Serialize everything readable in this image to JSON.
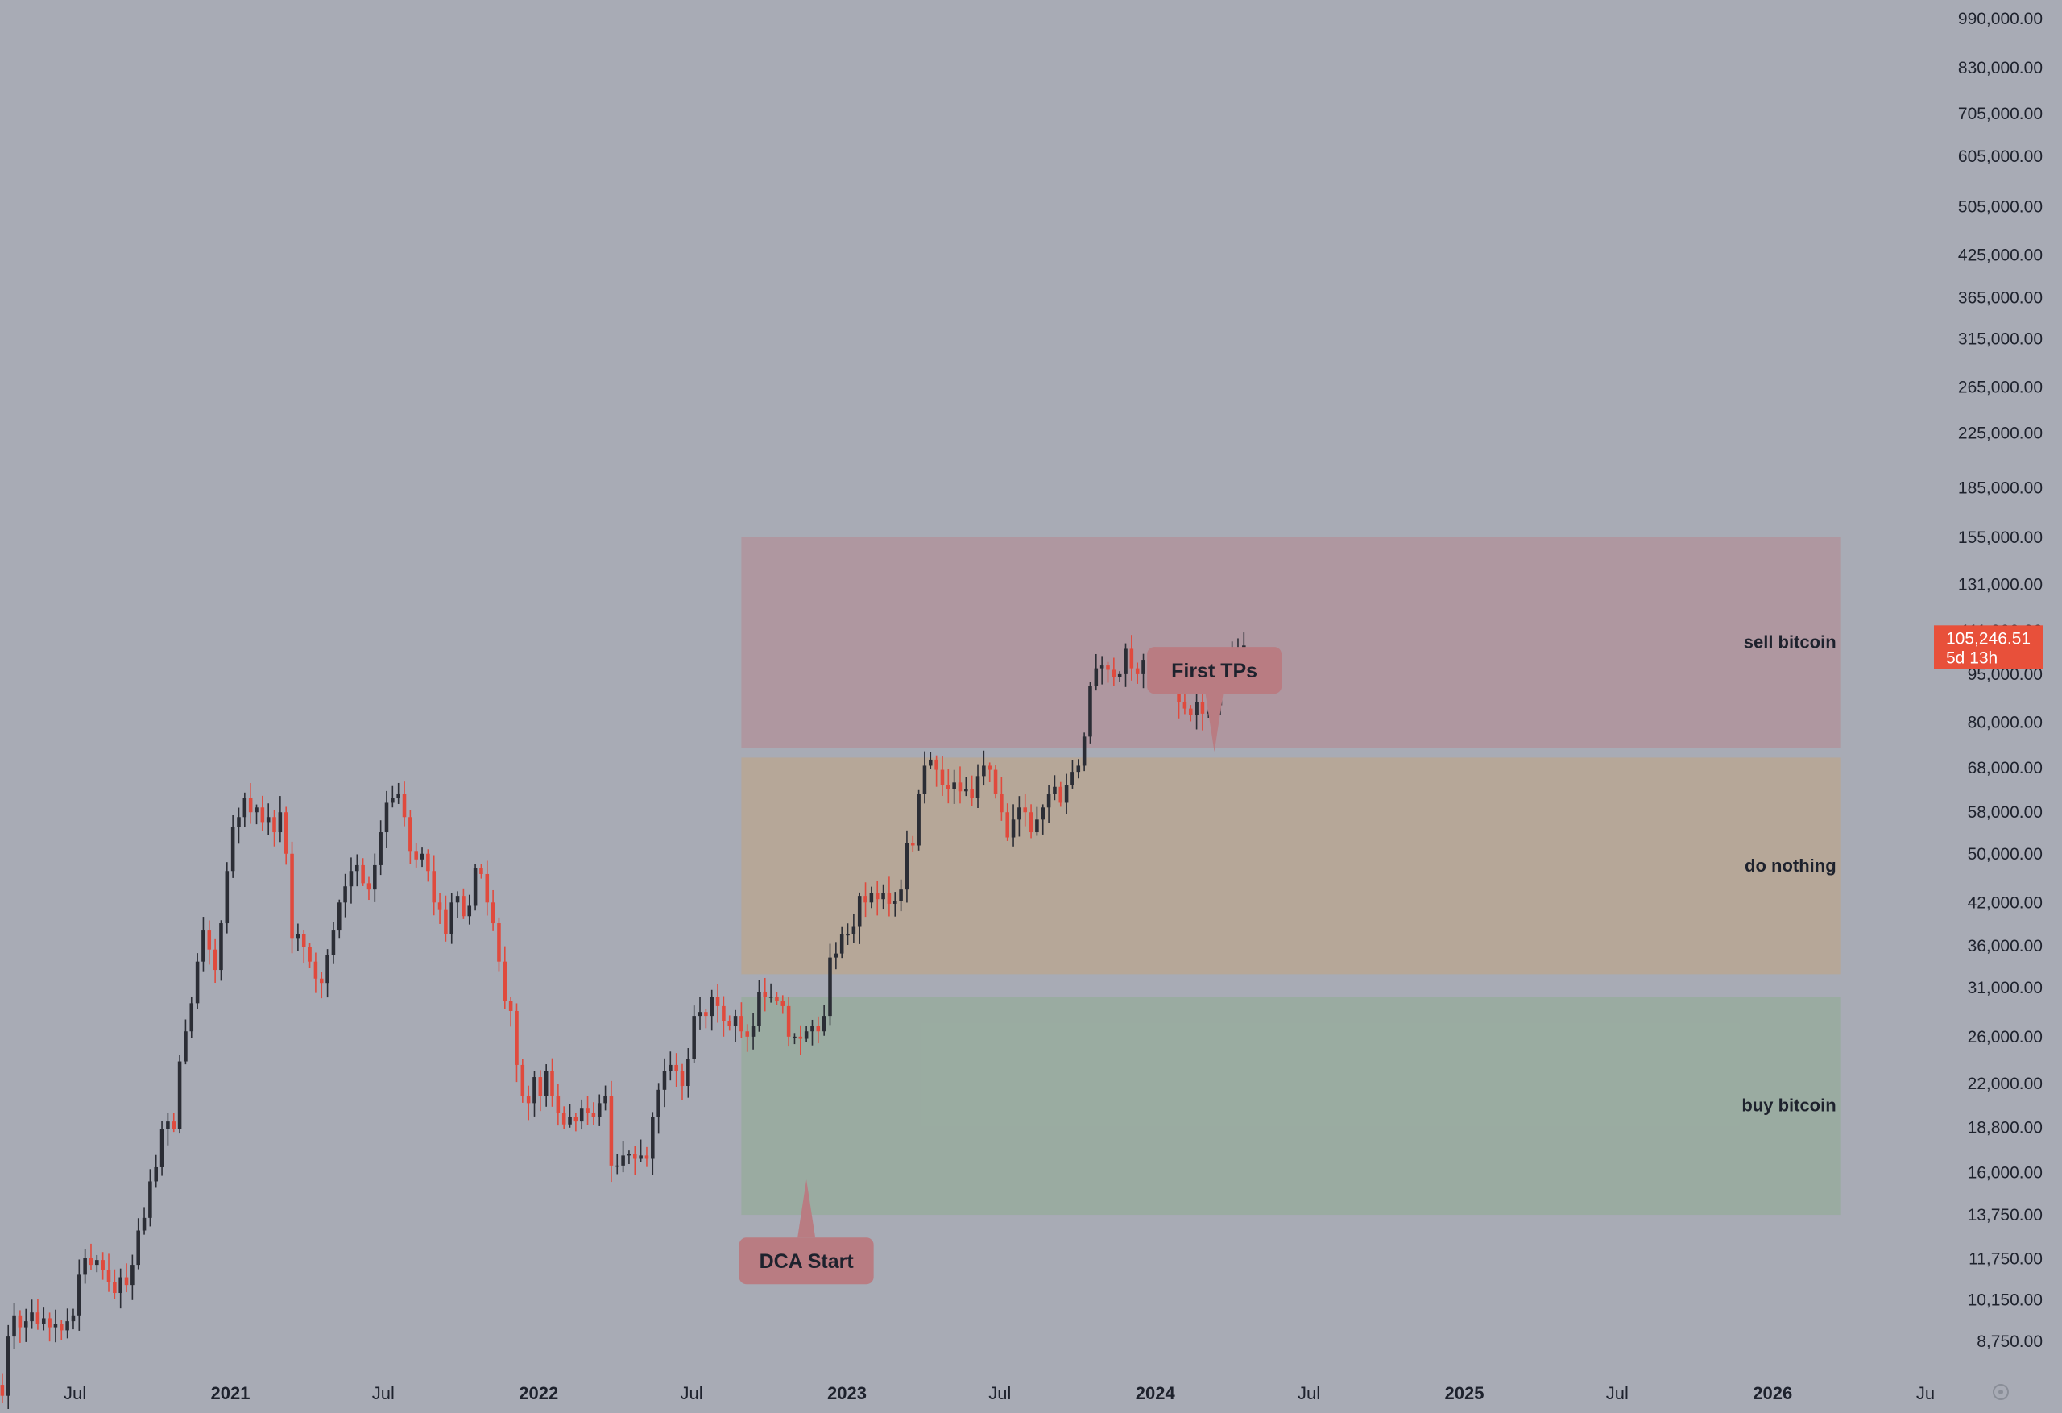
{
  "chart_data": {
    "type": "candlestick",
    "symbol": "",
    "y_scale": "log",
    "ylim": [
      7500,
      1150000
    ],
    "price_axis": {
      "side": "right",
      "ticks": [
        {
          "value": 990000,
          "label": "990,000.00"
        },
        {
          "value": 830000,
          "label": "830,000.00"
        },
        {
          "value": 705000,
          "label": "705,000.00"
        },
        {
          "value": 605000,
          "label": "605,000.00"
        },
        {
          "value": 505000,
          "label": "505,000.00"
        },
        {
          "value": 425000,
          "label": "425,000.00"
        },
        {
          "value": 365000,
          "label": "365,000.00"
        },
        {
          "value": 315000,
          "label": "315,000.00"
        },
        {
          "value": 265000,
          "label": "265,000.00"
        },
        {
          "value": 225000,
          "label": "225,000.00"
        },
        {
          "value": 185000,
          "label": "185,000.00"
        },
        {
          "value": 155000,
          "label": "155,000.00"
        },
        {
          "value": 131000,
          "label": "131,000.00"
        },
        {
          "value": 111000,
          "label": "111,000.00"
        },
        {
          "value": 95000,
          "label": "95,000.00"
        },
        {
          "value": 80000,
          "label": "80,000.00"
        },
        {
          "value": 68000,
          "label": "68,000.00"
        },
        {
          "value": 58000,
          "label": "58,000.00"
        },
        {
          "value": 50000,
          "label": "50,000.00"
        },
        {
          "value": 42000,
          "label": "42,000.00"
        },
        {
          "value": 36000,
          "label": "36,000.00"
        },
        {
          "value": 31000,
          "label": "31,000.00"
        },
        {
          "value": 26000,
          "label": "26,000.00"
        },
        {
          "value": 22000,
          "label": "22,000.00"
        },
        {
          "value": 18800,
          "label": "18,800.00"
        },
        {
          "value": 16000,
          "label": "16,000.00"
        },
        {
          "value": 13750,
          "label": "13,750.00"
        },
        {
          "value": 11750,
          "label": "11,750.00"
        },
        {
          "value": 10150,
          "label": "10,150.00"
        },
        {
          "value": 8750,
          "label": "8,750.00"
        }
      ]
    },
    "time_axis": {
      "start": "2020-04-01",
      "end": "2026-07-01",
      "ticks": [
        {
          "date": "2020-07-01",
          "label": "Jul",
          "year": false
        },
        {
          "date": "2021-01-01",
          "label": "2021",
          "year": true
        },
        {
          "date": "2021-07-01",
          "label": "Jul",
          "year": false
        },
        {
          "date": "2022-01-01",
          "label": "2022",
          "year": true
        },
        {
          "date": "2022-07-01",
          "label": "Jul",
          "year": false
        },
        {
          "date": "2023-01-01",
          "label": "2023",
          "year": true
        },
        {
          "date": "2023-07-01",
          "label": "Jul",
          "year": false
        },
        {
          "date": "2024-01-01",
          "label": "2024",
          "year": true
        },
        {
          "date": "2024-07-01",
          "label": "Jul",
          "year": false
        },
        {
          "date": "2025-01-01",
          "label": "2025",
          "year": true
        },
        {
          "date": "2025-07-01",
          "label": "Jul",
          "year": false
        },
        {
          "date": "2026-01-01",
          "label": "2026",
          "year": true
        },
        {
          "date": "2026-07-01",
          "label": "Ju",
          "year": false
        }
      ]
    },
    "series": [
      {
        "interval": "weekly",
        "start": "2020-04-06",
        "close_path": [
          7200,
          8900,
          9600,
          9200,
          9400,
          9700,
          9300,
          9500,
          9200,
          9300,
          9100,
          9400,
          9600,
          11100,
          11800,
          11500,
          11700,
          11300,
          10800,
          10400,
          11000,
          10700,
          11500,
          13000,
          13600,
          15500,
          16300,
          18700,
          19200,
          18700,
          23800,
          26500,
          29300,
          34000,
          38000,
          35500,
          33000,
          39000,
          47000,
          55000,
          57000,
          61000,
          58000,
          59000,
          56000,
          57000,
          54000,
          58000,
          50000,
          37000,
          37500,
          35800,
          34000,
          32000,
          31500,
          34800,
          38000,
          42000,
          44500,
          47000,
          48000,
          45000,
          44000,
          48000,
          54000,
          60000,
          61000,
          62000,
          57000,
          50500,
          49000,
          50000,
          47000,
          42000,
          41000,
          37500,
          42000,
          43000,
          40000,
          41500,
          47500,
          46500,
          42000,
          39000,
          34000,
          29500,
          28500,
          23500,
          21000,
          20500,
          22500,
          21000,
          23000,
          21000,
          19800,
          19000,
          19500,
          19200,
          20100,
          19800,
          19500,
          20500,
          21000,
          16400,
          16400,
          17000,
          17100,
          16800,
          17000,
          16800,
          19500,
          21500,
          23000,
          23500,
          23000,
          21800,
          24000,
          28000,
          28400,
          28000,
          30000,
          29000,
          27500,
          27000,
          28000,
          26500,
          26000,
          27000,
          30500,
          30000,
          30000,
          29500,
          29000,
          26000,
          26000,
          25800,
          26500,
          27000,
          26500,
          28000,
          34500,
          35000,
          37500,
          37500,
          38500,
          43000,
          42000,
          43500,
          42500,
          43500,
          41800,
          42200,
          44000,
          52000,
          51500,
          62000,
          68500,
          70000,
          67500,
          64000,
          63000,
          64500,
          62500,
          63000,
          61000,
          66000,
          68500,
          67500,
          62000,
          58000,
          53000,
          56500,
          59000,
          58000,
          54000,
          56500,
          59000,
          62000,
          63500,
          60000,
          64000,
          67000,
          68500,
          76000,
          91000,
          97000,
          98000,
          96500,
          94000,
          95000,
          104000,
          97000,
          95000,
          100000,
          102000,
          101000,
          97000,
          96000,
          96500,
          86000,
          84000,
          82000,
          86000,
          82500,
          83000,
          85000,
          93000,
          95000,
          103000,
          104000,
          105246.51
        ]
      }
    ],
    "current_price": {
      "value": 105246.51,
      "label": "105,246.51",
      "countdown": "5d 13h"
    },
    "zones": [
      {
        "name": "sell bitcoin",
        "label": "sell bitcoin",
        "low": 73000,
        "high": 155000,
        "start": "2022-08-29",
        "end": "2026-03-23",
        "color": "#b5878e"
      },
      {
        "name": "do nothing",
        "label": "do nothing",
        "low": 32500,
        "high": 70500,
        "start": "2022-08-29",
        "end": "2026-03-23",
        "color": "#c1a480"
      },
      {
        "name": "buy bitcoin",
        "label": "buy bitcoin",
        "low": 13750,
        "high": 30000,
        "start": "2022-08-29",
        "end": "2026-03-23",
        "color": "#8eac90"
      }
    ],
    "annotations": [
      {
        "name": "dca-start",
        "text": "DCA Start",
        "date": "2022-11-14",
        "price": 15600,
        "placement": "below"
      },
      {
        "name": "first-tps",
        "text": "First TPs",
        "date": "2024-03-11",
        "price": 72000,
        "placement": "above"
      }
    ],
    "colors": {
      "background": "#a8abb5",
      "up_candle": "#2b2d35",
      "down_candle": "#e04a3d",
      "callout": "#b97c82",
      "current_price_badge": "#e8503a"
    }
  }
}
